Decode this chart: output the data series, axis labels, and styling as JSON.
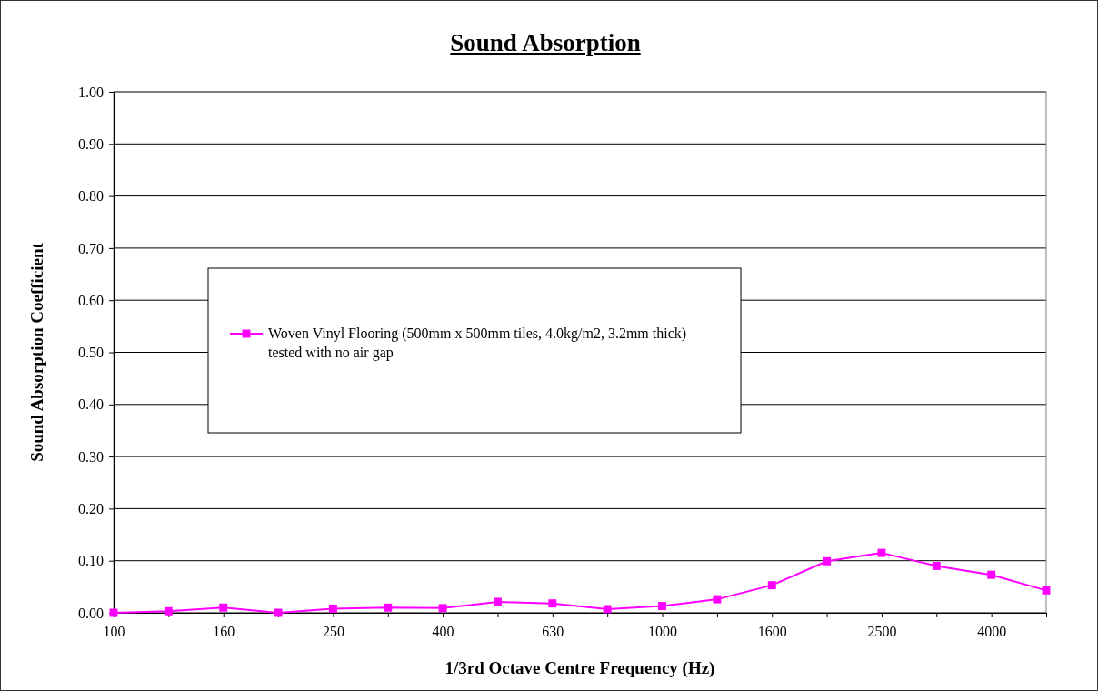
{
  "chart_data": {
    "type": "line",
    "title": "Sound Absorption",
    "xlabel": "1/3rd Octave Centre Frequency (Hz)",
    "ylabel": "Sound Absorption Coefficient",
    "categories": [
      "100",
      null,
      "160",
      null,
      "250",
      null,
      "400",
      null,
      "630",
      null,
      "1000",
      null,
      "1600",
      null,
      "2500",
      null,
      "4000",
      null
    ],
    "series": [
      {
        "name": "Woven Vinyl Flooring (500mm x 500mm tiles, 4.0kg/m2, 3.2mm thick) tested with no air gap",
        "color": "#ff00ff",
        "values": [
          0.0,
          0.003,
          0.01,
          0.0,
          0.008,
          0.01,
          0.009,
          0.021,
          0.018,
          0.007,
          0.013,
          0.026,
          0.053,
          0.099,
          0.115,
          0.09,
          0.073,
          0.043
        ]
      }
    ],
    "ylim": [
      0,
      1
    ],
    "yticks": [
      {
        "value": 0,
        "label": "0.00"
      },
      {
        "value": 0.1,
        "label": "0.10"
      },
      {
        "value": 0.2,
        "label": "0.20"
      },
      {
        "value": 0.3,
        "label": "0.30"
      },
      {
        "value": 0.4,
        "label": "0.40"
      },
      {
        "value": 0.5,
        "label": "0.50"
      },
      {
        "value": 0.6,
        "label": "0.60"
      },
      {
        "value": 0.7,
        "label": "0.70"
      },
      {
        "value": 0.8,
        "label": "0.80"
      },
      {
        "value": 0.9,
        "label": "0.90"
      },
      {
        "value": 1,
        "label": "1.00"
      }
    ],
    "grid": "y",
    "legend": "left",
    "marker": "square",
    "line_style": "solid"
  }
}
